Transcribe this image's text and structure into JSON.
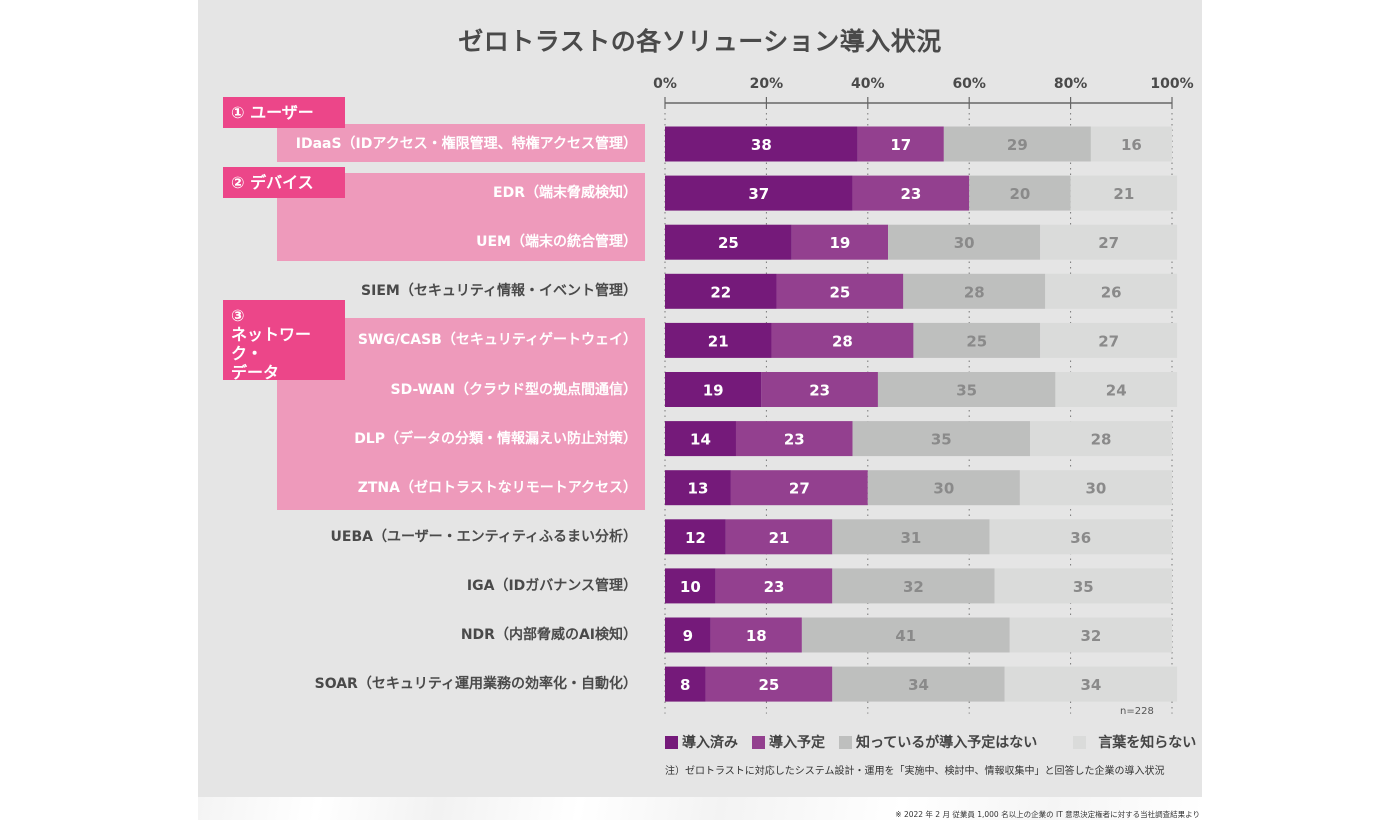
{
  "title": "ゼロトラストの各ソリューション導入状況",
  "categories_groups": [
    {
      "label": "① ユーザー",
      "label_lines": [
        "① ユーザー"
      ]
    },
    {
      "label": "② デバイス",
      "label_lines": [
        "② デバイス"
      ]
    },
    {
      "label": "③ ネットワーク・データ",
      "label_lines": [
        "③",
        "ネットワーク・",
        "データ"
      ]
    }
  ],
  "sample_size": "n=228",
  "note": "注）ゼロトラストに対応したシステム設計・運用を「実施中、検討中、情報収集中」と回答した企業の導入状況",
  "source": "※ 2022 年 2 月 従業員 1,000 名以上の企業の IT 意思決定権者に対する当社調査結果より",
  "colors": {
    "implemented": "#751a7a",
    "planned": "#93408f",
    "known_no_plan": "#bebfbe",
    "unknown_term": "#dadbda",
    "badge": "#ec4689",
    "band": "#ee9abb",
    "panel": "#e5e5e5"
  },
  "chart_data": {
    "type": "bar",
    "orientation": "horizontal",
    "stacked": true,
    "title": "ゼロトラストの各ソリューション導入状況",
    "xlabel": "",
    "ylabel": "",
    "xlim": [
      0,
      100
    ],
    "x_ticks": [
      "0%",
      "20%",
      "40%",
      "60%",
      "80%",
      "100%"
    ],
    "grid": true,
    "legend_position": "bottom",
    "categories": [
      "IDaaS（IDアクセス・権限管理、特権アクセス管理）",
      "EDR（端末脅威検知）",
      "UEM（端末の統合管理）",
      "SIEM（セキュリティ情報・イベント管理）",
      "SWG/CASB（セキュリティゲートウェイ）",
      "SD-WAN（クラウド型の拠点間通信）",
      "DLP（データの分類・情報漏えい防止対策）",
      "ZTNA（ゼロトラストなリモートアクセス）",
      "UEBA（ユーザー・エンティティふるまい分析）",
      "IGA（IDガバナンス管理）",
      "NDR（内部脅威のAI検知）",
      "SOAR（セキュリティ運用業務の効率化・自動化）"
    ],
    "category_group": [
      0,
      1,
      1,
      null,
      2,
      2,
      2,
      2,
      null,
      null,
      null,
      null
    ],
    "series": [
      {
        "name": "導入済み",
        "color": "#751a7a",
        "label_color": "#ffffff",
        "values": [
          38,
          37,
          25,
          22,
          21,
          19,
          14,
          13,
          12,
          10,
          9,
          8
        ]
      },
      {
        "name": "導入予定",
        "color": "#93408f",
        "label_color": "#ffffff",
        "values": [
          17,
          23,
          19,
          25,
          28,
          23,
          23,
          27,
          21,
          23,
          18,
          25
        ]
      },
      {
        "name": "知っているが導入予定はない",
        "color": "#bebfbe",
        "label_color": "#8a8a8a",
        "values": [
          29,
          20,
          30,
          28,
          25,
          35,
          35,
          30,
          31,
          32,
          41,
          34
        ]
      },
      {
        "name": "言葉を知らない",
        "color": "#dadbda",
        "label_color": "#8a8a8a",
        "values": [
          16,
          21,
          27,
          26,
          27,
          24,
          28,
          30,
          36,
          35,
          32,
          34
        ]
      }
    ]
  }
}
